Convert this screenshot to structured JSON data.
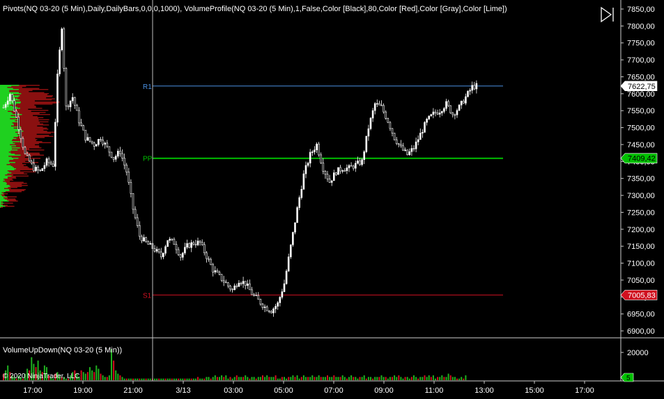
{
  "price_panel": {
    "indicator_header": "Pivots(NQ 03-20 (5 Min),Daily,DailyBars,0,0,0,1000), VolumeProfile(NQ 03-20 (5 Min),1,False,Color [Black],80,Color [Red],Color [Gray],Color [Lime])",
    "price_ticks": [
      "7850,00",
      "7800,00",
      "7750,00",
      "7700,00",
      "7650,00",
      "7600,00",
      "7550,00",
      "7500,00",
      "7450,00",
      "7400,00",
      "7350,00",
      "7300,00",
      "7250,00",
      "7200,00",
      "7150,00",
      "7100,00",
      "7050,00",
      "7000,00",
      "6950,00",
      "6900,00"
    ],
    "last_price_label": "7622,75"
  },
  "pivots": [
    {
      "name": "R1",
      "value": 7622.75,
      "label": "7622,75",
      "color": "#4a90e2"
    },
    {
      "name": "PP",
      "value": 7409.42,
      "label": "7409,42",
      "color": "#00c000"
    },
    {
      "name": "S1",
      "value": 7005.83,
      "label": "7005,83",
      "color": "#d01020"
    }
  ],
  "volume_panel": {
    "indicator_header": "VolumeUpDown(NQ 03-20 (5 Min))",
    "volume_ticks": [
      "20000"
    ],
    "last_volume_label": "5",
    "copyright": "© 2020 NinjaTrader, LLC"
  },
  "time_axis": {
    "labels": [
      "17:00",
      "19:00",
      "21:00",
      "3/13",
      "03:00",
      "05:00",
      "07:00",
      "09:00",
      "11:00",
      "13:00",
      "15:00",
      "17:00"
    ]
  },
  "chart_data": {
    "type": "candlestick",
    "instrument": "NQ 03-20 (5 Min)",
    "ylim": [
      6880,
      7870
    ],
    "volume_ylim": [
      0,
      25000
    ],
    "price_path": [
      [
        0,
        7560
      ],
      [
        3,
        7600
      ],
      [
        6,
        7530
      ],
      [
        10,
        7420
      ],
      [
        14,
        7380
      ],
      [
        17,
        7370
      ],
      [
        20,
        7400
      ],
      [
        23,
        7390
      ],
      [
        25,
        7650
      ],
      [
        27,
        7800
      ],
      [
        29,
        7560
      ],
      [
        32,
        7590
      ],
      [
        35,
        7520
      ],
      [
        38,
        7470
      ],
      [
        42,
        7450
      ],
      [
        45,
        7470
      ],
      [
        48,
        7440
      ],
      [
        51,
        7410
      ],
      [
        54,
        7430
      ],
      [
        57,
        7370
      ],
      [
        60,
        7260
      ],
      [
        63,
        7180
      ],
      [
        66,
        7160
      ],
      [
        70,
        7140
      ],
      [
        73,
        7120
      ],
      [
        76,
        7170
      ],
      [
        79,
        7160
      ],
      [
        82,
        7120
      ],
      [
        85,
        7150
      ],
      [
        88,
        7160
      ],
      [
        91,
        7160
      ],
      [
        94,
        7120
      ],
      [
        97,
        7080
      ],
      [
        100,
        7060
      ],
      [
        103,
        7040
      ],
      [
        106,
        7020
      ],
      [
        109,
        7050
      ],
      [
        112,
        7040
      ],
      [
        115,
        7010
      ],
      [
        118,
        6990
      ],
      [
        121,
        6970
      ],
      [
        124,
        6960
      ],
      [
        127,
        6980
      ],
      [
        130,
        7040
      ],
      [
        133,
        7150
      ],
      [
        136,
        7260
      ],
      [
        139,
        7360
      ],
      [
        142,
        7420
      ],
      [
        145,
        7450
      ],
      [
        148,
        7380
      ],
      [
        151,
        7340
      ],
      [
        154,
        7370
      ],
      [
        157,
        7380
      ],
      [
        160,
        7380
      ],
      [
        163,
        7390
      ],
      [
        166,
        7400
      ],
      [
        169,
        7500
      ],
      [
        172,
        7570
      ],
      [
        175,
        7560
      ],
      [
        178,
        7520
      ],
      [
        181,
        7470
      ],
      [
        184,
        7440
      ],
      [
        187,
        7420
      ],
      [
        190,
        7440
      ],
      [
        193,
        7480
      ],
      [
        196,
        7520
      ],
      [
        199,
        7540
      ],
      [
        202,
        7550
      ],
      [
        205,
        7570
      ],
      [
        208,
        7540
      ],
      [
        211,
        7560
      ],
      [
        214,
        7590
      ],
      [
        217,
        7620
      ],
      [
        219,
        7622.75
      ]
    ],
    "volume_values": [
      4,
      6,
      9,
      5,
      3,
      2,
      1,
      3,
      2,
      1,
      4,
      7,
      6,
      14,
      10,
      8,
      12,
      6,
      5,
      9,
      8,
      3,
      2,
      1,
      4,
      5,
      3,
      2,
      2,
      1,
      1,
      3,
      5,
      6,
      4,
      2,
      6,
      5,
      4,
      5,
      8,
      6,
      5,
      9,
      7,
      4,
      3,
      2,
      2,
      3,
      19,
      12,
      6,
      4,
      3,
      2,
      1,
      1,
      1,
      1,
      1,
      1,
      1,
      1,
      1,
      1,
      1,
      1,
      1,
      1,
      1,
      1,
      1,
      1,
      1,
      1,
      1,
      1,
      1,
      1,
      1,
      1,
      1,
      1,
      1,
      1,
      1,
      1,
      1,
      1,
      2,
      1,
      1,
      1,
      2,
      2,
      1,
      2,
      3,
      2,
      2,
      3,
      2,
      3,
      1,
      2,
      1,
      2,
      3,
      2,
      2,
      2,
      3,
      2,
      1,
      2,
      2,
      1,
      2,
      2,
      3,
      2,
      3,
      2,
      2,
      2,
      3,
      1,
      1,
      2,
      2,
      1,
      2,
      2,
      3,
      2,
      3,
      1,
      2,
      3,
      2,
      2,
      2,
      3,
      2,
      2,
      3,
      2,
      2,
      2,
      3,
      2,
      2,
      3,
      2,
      2,
      2,
      3,
      2,
      1,
      2,
      3,
      2,
      2,
      1,
      2,
      2,
      3,
      1,
      2,
      2,
      1,
      2,
      2,
      2,
      3,
      2,
      2,
      1,
      2,
      2,
      3,
      2,
      3,
      2,
      1,
      2,
      2,
      1,
      2,
      3,
      2,
      1,
      2,
      2,
      3,
      2,
      3,
      2,
      3,
      1,
      2,
      2,
      3,
      2,
      2,
      4,
      3,
      2,
      2,
      1,
      1,
      2,
      1,
      3
    ]
  }
}
